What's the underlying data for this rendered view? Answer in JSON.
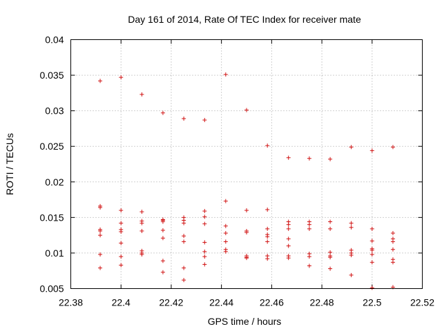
{
  "chart_data": {
    "type": "scatter",
    "title": "Day 161 of 2014, Rate Of TEC Index for receiver mate",
    "xlabel": "GPS time / hours",
    "ylabel": "ROTI / TECUs",
    "xlim": [
      22.38,
      22.52
    ],
    "ylim": [
      0.005,
      0.04
    ],
    "xticks": [
      "22.38",
      "22.4",
      "22.42",
      "22.44",
      "22.46",
      "22.48",
      "22.5",
      "22.52"
    ],
    "yticks": [
      "0.005",
      "0.01",
      "0.015",
      "0.02",
      "0.025",
      "0.03",
      "0.035",
      "0.04"
    ],
    "grid": true,
    "marker": "+",
    "color": "#d01010",
    "series": [
      {
        "name": "ROTI",
        "points": [
          [
            22.3917,
            0.0342
          ],
          [
            22.3917,
            0.0166
          ],
          [
            22.3917,
            0.0164
          ],
          [
            22.3917,
            0.0133
          ],
          [
            22.3917,
            0.0131
          ],
          [
            22.3917,
            0.0125
          ],
          [
            22.3917,
            0.0098
          ],
          [
            22.3917,
            0.0079
          ],
          [
            22.4,
            0.0347
          ],
          [
            22.4,
            0.016
          ],
          [
            22.4,
            0.0142
          ],
          [
            22.4,
            0.0133
          ],
          [
            22.4,
            0.013
          ],
          [
            22.4,
            0.0114
          ],
          [
            22.4,
            0.0095
          ],
          [
            22.4,
            0.0083
          ],
          [
            22.4083,
            0.0323
          ],
          [
            22.4083,
            0.0158
          ],
          [
            22.4083,
            0.0145
          ],
          [
            22.4083,
            0.0142
          ],
          [
            22.4083,
            0.0131
          ],
          [
            22.4083,
            0.0103
          ],
          [
            22.4083,
            0.01
          ],
          [
            22.4083,
            0.0098
          ],
          [
            22.4167,
            0.0297
          ],
          [
            22.4167,
            0.0147
          ],
          [
            22.4167,
            0.0146
          ],
          [
            22.4167,
            0.0144
          ],
          [
            22.4167,
            0.0132
          ],
          [
            22.4167,
            0.0121
          ],
          [
            22.4167,
            0.0089
          ],
          [
            22.4167,
            0.0073
          ],
          [
            22.425,
            0.0289
          ],
          [
            22.425,
            0.015
          ],
          [
            22.425,
            0.0146
          ],
          [
            22.425,
            0.0142
          ],
          [
            22.425,
            0.0124
          ],
          [
            22.425,
            0.0116
          ],
          [
            22.425,
            0.0079
          ],
          [
            22.425,
            0.0062
          ],
          [
            22.4333,
            0.0287
          ],
          [
            22.4333,
            0.0159
          ],
          [
            22.4333,
            0.0151
          ],
          [
            22.4333,
            0.0141
          ],
          [
            22.4333,
            0.0115
          ],
          [
            22.4333,
            0.0102
          ],
          [
            22.4333,
            0.0095
          ],
          [
            22.4333,
            0.0084
          ],
          [
            22.4417,
            0.0351
          ],
          [
            22.4417,
            0.0173
          ],
          [
            22.4417,
            0.0138
          ],
          [
            22.4417,
            0.0128
          ],
          [
            22.4417,
            0.0116
          ],
          [
            22.4417,
            0.0105
          ],
          [
            22.4417,
            0.0102
          ],
          [
            22.45,
            0.0301
          ],
          [
            22.45,
            0.016
          ],
          [
            22.45,
            0.0131
          ],
          [
            22.45,
            0.0129
          ],
          [
            22.45,
            0.0096
          ],
          [
            22.45,
            0.0094
          ],
          [
            22.45,
            0.0093
          ],
          [
            22.4583,
            0.0251
          ],
          [
            22.4583,
            0.0161
          ],
          [
            22.4583,
            0.0134
          ],
          [
            22.4583,
            0.0126
          ],
          [
            22.4583,
            0.0123
          ],
          [
            22.4583,
            0.0116
          ],
          [
            22.4583,
            0.0096
          ],
          [
            22.4583,
            0.0092
          ],
          [
            22.4667,
            0.0234
          ],
          [
            22.4667,
            0.0144
          ],
          [
            22.4667,
            0.014
          ],
          [
            22.4667,
            0.0134
          ],
          [
            22.4667,
            0.012
          ],
          [
            22.4667,
            0.011
          ],
          [
            22.4667,
            0.0096
          ],
          [
            22.4667,
            0.0093
          ],
          [
            22.475,
            0.0233
          ],
          [
            22.475,
            0.0144
          ],
          [
            22.475,
            0.014
          ],
          [
            22.475,
            0.0134
          ],
          [
            22.475,
            0.0099
          ],
          [
            22.475,
            0.0095
          ],
          [
            22.475,
            0.0082
          ],
          [
            22.4833,
            0.0232
          ],
          [
            22.4833,
            0.0144
          ],
          [
            22.4833,
            0.0134
          ],
          [
            22.4833,
            0.0101
          ],
          [
            22.4833,
            0.0096
          ],
          [
            22.4833,
            0.0094
          ],
          [
            22.4833,
            0.0078
          ],
          [
            22.4917,
            0.0249
          ],
          [
            22.4917,
            0.0142
          ],
          [
            22.4917,
            0.0136
          ],
          [
            22.4917,
            0.0104
          ],
          [
            22.4917,
            0.01
          ],
          [
            22.4917,
            0.0097
          ],
          [
            22.4917,
            0.0069
          ],
          [
            22.5,
            0.0244
          ],
          [
            22.5,
            0.0134
          ],
          [
            22.5,
            0.0117
          ],
          [
            22.5,
            0.0106
          ],
          [
            22.5,
            0.0104
          ],
          [
            22.5,
            0.0098
          ],
          [
            22.5,
            0.0087
          ],
          [
            22.5,
            0.0051
          ],
          [
            22.5083,
            0.0249
          ],
          [
            22.5083,
            0.0128
          ],
          [
            22.5083,
            0.012
          ],
          [
            22.5083,
            0.0116
          ],
          [
            22.5083,
            0.0105
          ],
          [
            22.5083,
            0.0091
          ],
          [
            22.5083,
            0.0087
          ],
          [
            22.5083,
            0.0052
          ]
        ]
      }
    ]
  }
}
